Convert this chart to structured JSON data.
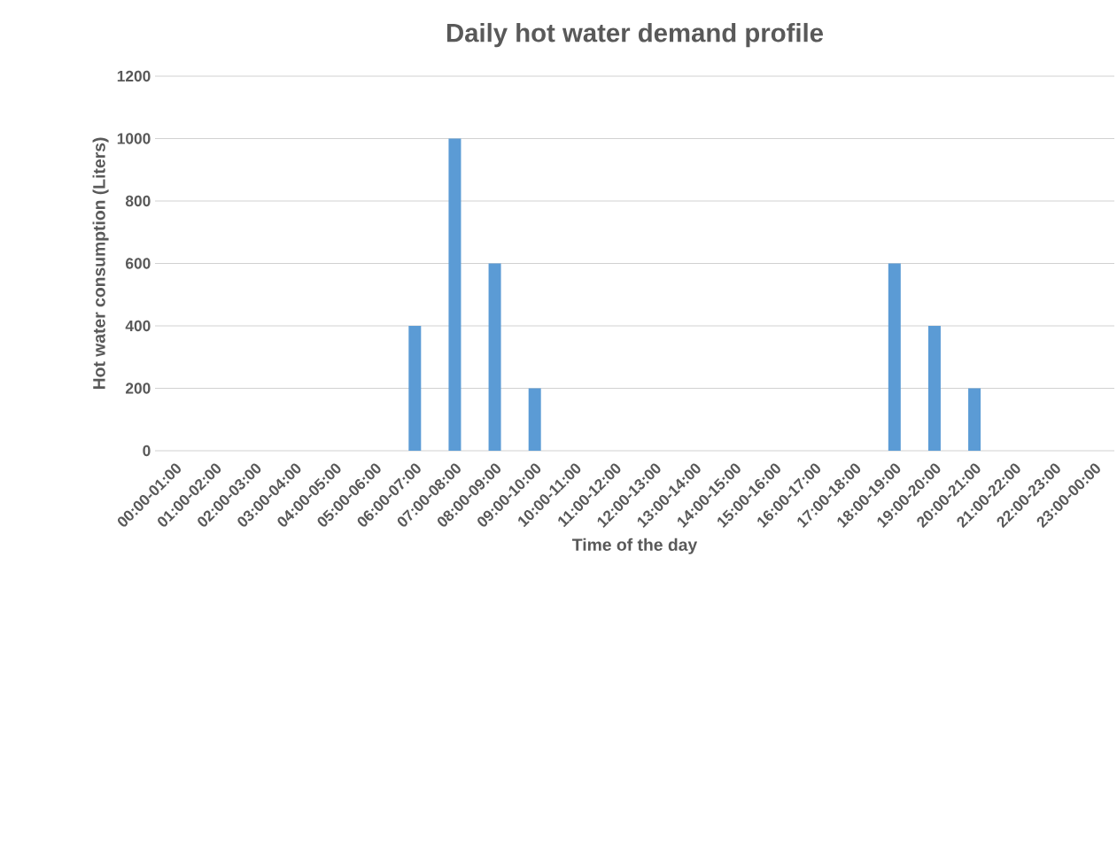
{
  "chart_data": {
    "type": "bar",
    "title": "Daily hot water demand profile",
    "xlabel": "Time of the day",
    "ylabel": "Hot water consumption (Liters)",
    "categories": [
      "00:00-01:00",
      "01:00-02:00",
      "02:00-03:00",
      "03:00-04:00",
      "04:00-05:00",
      "05:00-06:00",
      "06:00-07:00",
      "07:00-08:00",
      "08:00-09:00",
      "09:00-10:00",
      "10:00-11:00",
      "11:00-12:00",
      "12:00-13:00",
      "13:00-14:00",
      "14:00-15:00",
      "15:00-16:00",
      "16:00-17:00",
      "17:00-18:00",
      "18:00-19:00",
      "19:00-20:00",
      "20:00-21:00",
      "21:00-22:00",
      "22:00-23:00",
      "23:00-00:00"
    ],
    "values": [
      0,
      0,
      0,
      0,
      0,
      0,
      400,
      1000,
      600,
      200,
      0,
      0,
      0,
      0,
      0,
      0,
      0,
      0,
      600,
      400,
      200,
      0,
      0,
      0
    ],
    "color": "#5b9bd5",
    "ylim": [
      0,
      1200
    ],
    "yticks": [
      0,
      200,
      400,
      600,
      800,
      1000,
      1200
    ],
    "grid": "y"
  }
}
